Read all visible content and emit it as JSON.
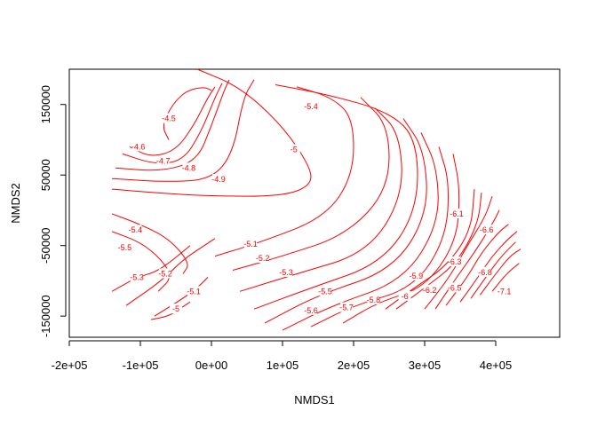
{
  "chart_data": {
    "type": "contour",
    "xlabel": "NMDS1",
    "ylabel": "NMDS2",
    "xlim": [
      -200000,
      490000
    ],
    "ylim": [
      -180000,
      200000
    ],
    "grid": false,
    "legend": "none",
    "line_color": "#ff0000",
    "x_ticks": [
      {
        "value": -200000,
        "label": "-2e+05"
      },
      {
        "value": -100000,
        "label": "-1e+05"
      },
      {
        "value": 0,
        "label": "0e+00"
      },
      {
        "value": 100000,
        "label": "1e+05"
      },
      {
        "value": 200000,
        "label": "2e+05"
      },
      {
        "value": 300000,
        "label": "3e+05"
      },
      {
        "value": 400000,
        "label": "4e+05"
      }
    ],
    "y_ticks": [
      {
        "value": -150000,
        "label": "-150000"
      },
      {
        "value": -50000,
        "label": "-50000"
      },
      {
        "value": 50000,
        "label": "50000"
      },
      {
        "value": 150000,
        "label": "150000"
      }
    ],
    "contour_levels": [
      {
        "level": "-4.5",
        "label_at": [
          -60000,
          130000
        ],
        "path": [
          [
            -60000,
            100000
          ],
          [
            -70000,
            120000
          ],
          [
            -55000,
            150000
          ],
          [
            -35000,
            170000
          ],
          [
            -10000,
            175000
          ],
          [
            0,
            170000
          ]
        ]
      },
      {
        "level": "-4.6",
        "label_at": [
          -103000,
          90000
        ],
        "path": [
          [
            -115000,
            90000
          ],
          [
            -85000,
            75000
          ],
          [
            -50000,
            85000
          ],
          [
            -25000,
            120000
          ],
          [
            -5000,
            160000
          ],
          [
            5000,
            175000
          ]
        ]
      },
      {
        "level": "-4.7",
        "label_at": [
          -68000,
          70000
        ],
        "path": [
          [
            -125000,
            80000
          ],
          [
            -80000,
            65000
          ],
          [
            -40000,
            70000
          ],
          [
            -15000,
            110000
          ],
          [
            5000,
            160000
          ],
          [
            15000,
            180000
          ]
        ]
      },
      {
        "level": "-4.8",
        "label_at": [
          -32000,
          60000
        ],
        "path": [
          [
            -135000,
            60000
          ],
          [
            -70000,
            55000
          ],
          [
            -20000,
            70000
          ],
          [
            0,
            120000
          ],
          [
            18000,
            170000
          ],
          [
            25000,
            185000
          ]
        ]
      },
      {
        "level": "-4.9",
        "label_at": [
          10000,
          44000
        ],
        "path": [
          [
            -140000,
            45000
          ],
          [
            -60000,
            40000
          ],
          [
            0,
            44000
          ],
          [
            30000,
            80000
          ],
          [
            45000,
            160000
          ],
          [
            60000,
            185000
          ]
        ]
      },
      {
        "level": "-5",
        "label_at": [
          116000,
          86000
        ],
        "path": [
          [
            -20000,
            200000
          ],
          [
            40000,
            175000
          ],
          [
            100000,
            120000
          ],
          [
            140000,
            60000
          ],
          [
            140000,
            35000
          ],
          [
            100000,
            20000
          ],
          [
            0,
            20000
          ],
          [
            -80000,
            25000
          ],
          [
            -140000,
            30000
          ]
        ]
      },
      {
        "level": "-5.1",
        "label_at": [
          55000,
          -48000
        ],
        "path": [
          [
            5000,
            -65000
          ],
          [
            70000,
            -45000
          ],
          [
            160000,
            -10000
          ],
          [
            200000,
            50000
          ],
          [
            200000,
            130000
          ],
          [
            170000,
            160000
          ],
          [
            120000,
            175000
          ]
        ]
      },
      {
        "level": "-5.2",
        "label_at": [
          72000,
          -68000
        ],
        "path": [
          [
            30000,
            -85000
          ],
          [
            100000,
            -65000
          ],
          [
            190000,
            -35000
          ],
          [
            250000,
            30000
          ],
          [
            250000,
            120000
          ],
          [
            210000,
            160000
          ]
        ]
      },
      {
        "level": "-5.3",
        "label_at": [
          105000,
          -88000
        ],
        "path": [
          [
            40000,
            -115000
          ],
          [
            120000,
            -90000
          ],
          [
            220000,
            -60000
          ],
          [
            270000,
            20000
          ],
          [
            265000,
            110000
          ],
          [
            230000,
            145000
          ]
        ]
      },
      {
        "level": "-5.4",
        "label_at": [
          140000,
          147000
        ],
        "path": [
          [
            60000,
            -140000
          ],
          [
            140000,
            -110000
          ],
          [
            240000,
            -75000
          ],
          [
            290000,
            0
          ],
          [
            290000,
            100000
          ],
          [
            250000,
            140000
          ],
          [
            160000,
            165000
          ],
          [
            90000,
            178000
          ]
        ]
      },
      {
        "level": "-5.5",
        "label_at": [
          160000,
          -115000
        ],
        "path": [
          [
            75000,
            -160000
          ],
          [
            150000,
            -120000
          ],
          [
            255000,
            -85000
          ],
          [
            305000,
            -5000
          ],
          [
            300000,
            85000
          ],
          [
            270000,
            130000
          ]
        ]
      },
      {
        "level": "-5.6",
        "label_at": [
          140000,
          -142000
        ],
        "path": [
          [
            100000,
            -170000
          ],
          [
            170000,
            -135000
          ],
          [
            270000,
            -100000
          ],
          [
            320000,
            -20000
          ],
          [
            318000,
            60000
          ],
          [
            295000,
            110000
          ]
        ]
      },
      {
        "level": "-5.7",
        "label_at": [
          190000,
          -138000
        ],
        "path": [
          [
            140000,
            -165000
          ],
          [
            200000,
            -135000
          ],
          [
            285000,
            -110000
          ],
          [
            330000,
            -40000
          ],
          [
            335000,
            40000
          ],
          [
            320000,
            90000
          ]
        ]
      },
      {
        "level": "-5.8",
        "label_at": [
          228000,
          -127000
        ],
        "path": [
          [
            185000,
            -160000
          ],
          [
            235000,
            -130000
          ],
          [
            300000,
            -110000
          ],
          [
            345000,
            -45000
          ],
          [
            350000,
            30000
          ],
          [
            340000,
            80000
          ]
        ]
      },
      {
        "level": "-5.9",
        "label_at": [
          288000,
          -93000
        ],
        "path": [
          [
            245000,
            -140000
          ],
          [
            285000,
            -110000
          ],
          [
            330000,
            -80000
          ],
          [
            365000,
            -30000
          ],
          [
            370000,
            30000
          ]
        ]
      },
      {
        "level": "-6",
        "label_at": [
          272000,
          -122000
        ],
        "path": [
          [
            260000,
            -140000
          ],
          [
            300000,
            -110000
          ],
          [
            345000,
            -75000
          ],
          [
            375000,
            -20000
          ],
          [
            380000,
            25000
          ]
        ]
      },
      {
        "level": "-6.1",
        "label_at": [
          345000,
          -5000
        ],
        "path": [
          [
            300000,
            -140000
          ],
          [
            335000,
            -95000
          ],
          [
            360000,
            -50000
          ],
          [
            385000,
            -10000
          ],
          [
            395000,
            20000
          ]
        ]
      },
      {
        "level": "-6.2",
        "label_at": [
          307000,
          -113000
        ],
        "path": [
          [
            315000,
            -140000
          ],
          [
            345000,
            -95000
          ],
          [
            370000,
            -60000
          ],
          [
            395000,
            -20000
          ],
          [
            405000,
            0
          ]
        ]
      },
      {
        "level": "-6.3",
        "label_at": [
          342000,
          -73000
        ],
        "path": [
          [
            330000,
            -135000
          ],
          [
            360000,
            -95000
          ],
          [
            380000,
            -60000
          ],
          [
            405000,
            -30000
          ],
          [
            418000,
            -20000
          ]
        ]
      },
      {
        "level": "-6.5",
        "label_at": [
          342000,
          -110000
        ],
        "path": [
          [
            350000,
            -130000
          ],
          [
            375000,
            -95000
          ],
          [
            395000,
            -65000
          ],
          [
            418000,
            -40000
          ],
          [
            430000,
            -30000
          ]
        ]
      },
      {
        "level": "-6.6",
        "label_at": [
          387000,
          -28000
        ],
        "path": [
          [
            365000,
            -125000
          ],
          [
            388000,
            -92000
          ],
          [
            408000,
            -65000
          ],
          [
            428000,
            -45000
          ]
        ]
      },
      {
        "level": "-6.8",
        "label_at": [
          385000,
          -88000
        ],
        "path": [
          [
            378000,
            -120000
          ],
          [
            400000,
            -90000
          ],
          [
            420000,
            -65000
          ],
          [
            435000,
            -55000
          ]
        ]
      },
      {
        "level": "-7.1",
        "label_at": [
          412000,
          -115000
        ],
        "path": [
          [
            395000,
            -115000
          ],
          [
            415000,
            -90000
          ],
          [
            433000,
            -75000
          ]
        ]
      },
      {
        "level": "-5.4",
        "label_at": [
          -107000,
          -28000
        ],
        "path": [
          [
            -140000,
            -5000
          ],
          [
            -100000,
            -20000
          ],
          [
            -60000,
            -40000
          ],
          [
            -30000,
            -75000
          ],
          [
            -40000,
            -90000
          ]
        ]
      },
      {
        "level": "-5.5",
        "label_at": [
          -122000,
          -53000
        ],
        "path": [
          [
            -140000,
            -30000
          ],
          [
            -100000,
            -45000
          ],
          [
            -70000,
            -70000
          ],
          [
            -55000,
            -95000
          ],
          [
            -75000,
            -115000
          ]
        ]
      },
      {
        "level": "-5.3",
        "label_at": [
          -105000,
          -95000
        ],
        "path": [
          [
            -140000,
            -115000
          ],
          [
            -105000,
            -95000
          ],
          [
            -80000,
            -88000
          ],
          [
            -60000,
            -75000
          ],
          [
            -30000,
            -50000
          ]
        ]
      },
      {
        "level": "-5.2",
        "label_at": [
          -65000,
          -90000
        ],
        "path": [
          [
            -120000,
            -135000
          ],
          [
            -70000,
            -100000
          ],
          [
            -40000,
            -70000
          ],
          [
            -10000,
            -50000
          ],
          [
            5000,
            -40000
          ]
        ]
      },
      {
        "level": "-5.1",
        "label_at": [
          -25000,
          -115000
        ],
        "path": [
          [
            -80000,
            -150000
          ],
          [
            -40000,
            -125000
          ],
          [
            -20000,
            -110000
          ],
          [
            -5000,
            -95000
          ]
        ]
      },
      {
        "level": "-5",
        "label_at": [
          -50000,
          -140000
        ],
        "path": [
          [
            -85000,
            -155000
          ],
          [
            -60000,
            -150000
          ],
          [
            -45000,
            -140000
          ],
          [
            -30000,
            -130000
          ]
        ]
      }
    ]
  }
}
